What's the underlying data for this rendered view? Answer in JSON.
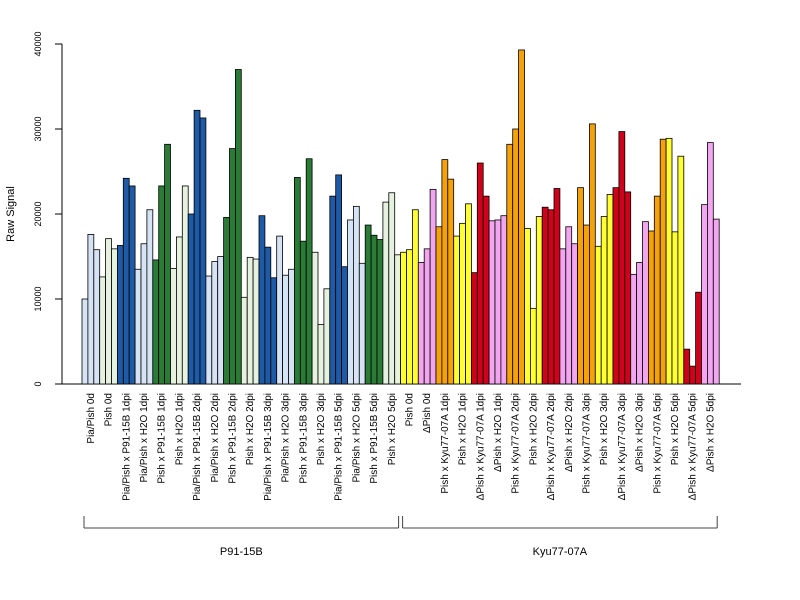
{
  "chart_data": {
    "type": "bar",
    "ylabel": "Raw Signal",
    "ylim": [
      0,
      40000
    ],
    "yticks": [
      "0",
      "10000",
      "20000",
      "30000",
      "40000"
    ],
    "bars_per_category": 3,
    "colors": {
      "lightblue": "#d6e3f4",
      "blue": "#1f5aa6",
      "lightgreen": "#e6f2df",
      "green": "#2a7b36",
      "yellow": "#ffff33",
      "violet": "#f2a6f0",
      "orange": "#f5a20a",
      "red": "#d0021b"
    },
    "categories": [
      {
        "label": "Pia/Pish 0d",
        "color": "lightblue",
        "values": [
          10000,
          17600,
          15800
        ]
      },
      {
        "label": "Pish 0d",
        "color": "lightgreen",
        "values": [
          12600,
          17100,
          15900
        ]
      },
      {
        "label": "Pia/Pish x P91-15B 1dpi",
        "color": "blue",
        "values": [
          16300,
          24200,
          23300
        ]
      },
      {
        "label": "Pia/Pish x H2O 1dpi",
        "color": "lightblue",
        "values": [
          13500,
          16500,
          20500
        ]
      },
      {
        "label": "Pish x P91-15B 1dpi",
        "color": "green",
        "values": [
          14600,
          23300,
          28200
        ]
      },
      {
        "label": "Pish x H2O 1dpi",
        "color": "lightgreen",
        "values": [
          13600,
          17300,
          23300
        ]
      },
      {
        "label": "Pia/Pish x P91-15B 2dpi",
        "color": "blue",
        "values": [
          20000,
          32200,
          31300
        ]
      },
      {
        "label": "Pia/Pish x H2O 2dpi",
        "color": "lightblue",
        "values": [
          12700,
          14400,
          15000
        ]
      },
      {
        "label": "Pish x P91-15B 2dpi",
        "color": "green",
        "values": [
          19600,
          27700,
          37000
        ]
      },
      {
        "label": "Pish x H2O 2dpi",
        "color": "lightgreen",
        "values": [
          10200,
          14900,
          14700
        ]
      },
      {
        "label": "Pia/Pish x P91-15B 3dpi",
        "color": "blue",
        "values": [
          19800,
          16100,
          12500
        ]
      },
      {
        "label": "Pia/Pish x H2O 3dpi",
        "color": "lightblue",
        "values": [
          17400,
          12800,
          13500
        ]
      },
      {
        "label": "Pish x P91-15B 3dpi",
        "color": "green",
        "values": [
          24300,
          16800,
          26500
        ]
      },
      {
        "label": "Pish x H2O 3dpi",
        "color": "lightgreen",
        "values": [
          15500,
          7000,
          11200
        ]
      },
      {
        "label": "Pia/Pish x P91-15B 5dpi",
        "color": "blue",
        "values": [
          22100,
          24600,
          13800
        ]
      },
      {
        "label": "Pia/Pish x H2O 5dpi",
        "color": "lightblue",
        "values": [
          19300,
          20900,
          14200
        ]
      },
      {
        "label": "Pish x P91-15B 5dpi",
        "color": "green",
        "values": [
          18700,
          17500,
          17000
        ]
      },
      {
        "label": "Pish x H2O 5dpi",
        "color": "lightgreen",
        "values": [
          21400,
          22500,
          15200
        ]
      },
      {
        "label": "Pish 0d",
        "color": "yellow",
        "values": [
          15500,
          15800,
          20500
        ]
      },
      {
        "label": "ΔPish 0d",
        "color": "violet",
        "values": [
          14300,
          15900,
          22900
        ]
      },
      {
        "label": "Pish x Kyu77-07A 1dpi",
        "color": "orange",
        "values": [
          18500,
          26400,
          24100
        ]
      },
      {
        "label": "Pish x H2O 1dpi",
        "color": "yellow",
        "values": [
          17400,
          18900,
          21200
        ]
      },
      {
        "label": "ΔPish x Kyu77-07A 1dpi",
        "color": "red",
        "values": [
          13100,
          26000,
          22100
        ]
      },
      {
        "label": "ΔPish x H2O 1dpi",
        "color": "violet",
        "values": [
          19200,
          19300,
          19800
        ]
      },
      {
        "label": "Pish x Kyu77-07A 2dpi",
        "color": "orange",
        "values": [
          28200,
          30000,
          39300
        ]
      },
      {
        "label": "Pish x H2O 2dpi",
        "color": "yellow",
        "values": [
          18300,
          8900,
          19700
        ]
      },
      {
        "label": "ΔPish x Kyu77-07A 2dpi",
        "color": "red",
        "values": [
          20800,
          20500,
          23000
        ]
      },
      {
        "label": "ΔPish x H2O 2dpi",
        "color": "violet",
        "values": [
          15900,
          18500,
          16500
        ]
      },
      {
        "label": "Pish x Kyu77-07A 3dpi",
        "color": "orange",
        "values": [
          23100,
          18700,
          30600
        ]
      },
      {
        "label": "Pish x H2O 3dpi",
        "color": "yellow",
        "values": [
          16200,
          19700,
          22300
        ]
      },
      {
        "label": "ΔPish x Kyu77-07A 3dpi",
        "color": "red",
        "values": [
          23100,
          29700,
          22600
        ]
      },
      {
        "label": "ΔPish x H2O 3dpi",
        "color": "violet",
        "values": [
          12900,
          14300,
          19100
        ]
      },
      {
        "label": "Pish x Kyu77-07A 5dpi",
        "color": "orange",
        "values": [
          18000,
          22100,
          28800
        ]
      },
      {
        "label": "Pish x H2O 5dpi",
        "color": "yellow",
        "values": [
          28900,
          17900,
          26800
        ]
      },
      {
        "label": "ΔPish x Kyu77-07A 5dpi",
        "color": "red",
        "values": [
          4100,
          2100,
          10800
        ]
      },
      {
        "label": "ΔPish x H2O 5dpi",
        "color": "violet",
        "values": [
          21100,
          28400,
          19400
        ]
      }
    ],
    "groups": [
      {
        "label": "P91-15B",
        "start_category": 0,
        "end_category": 17
      },
      {
        "label": "Kyu77-07A",
        "start_category": 18,
        "end_category": 35
      }
    ]
  }
}
